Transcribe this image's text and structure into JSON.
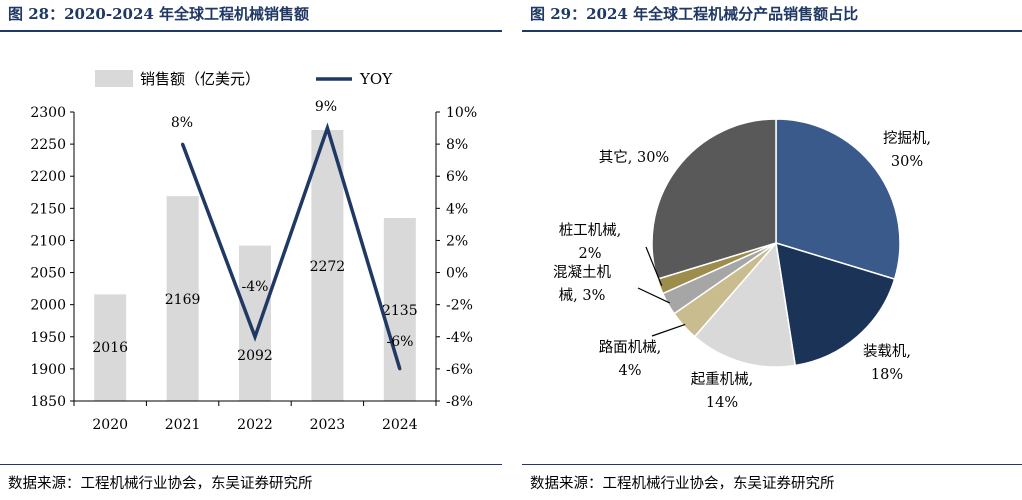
{
  "left": {
    "title": "图 28：2020-2024 年全球工程机械销售额",
    "source": "数据来源：工程机械行业协会，东吴证券研究所",
    "legend": {
      "bar_label": "销售额（亿美元）",
      "line_label": "YOY"
    }
  },
  "right": {
    "title": "图 29：2024 年全球工程机械分产品销售额占比",
    "source": "数据来源：工程机械行业协会，东吴证券研究所"
  },
  "colors": {
    "bar": "#d9d9d9",
    "line": "#1f3864",
    "title": "#1f3864",
    "pie": [
      "#3a5a8c",
      "#1c3358",
      "#d9d9d9",
      "#c9bd8f",
      "#a6a6a6",
      "#9c8d4c",
      "#595959"
    ]
  },
  "chart_data": [
    {
      "type": "bar",
      "title": "2020-2024 年全球工程机械销售额",
      "categories": [
        "2020",
        "2021",
        "2022",
        "2023",
        "2024"
      ],
      "series": [
        {
          "name": "销售额（亿美元）",
          "axis": "left",
          "values": [
            2016,
            2169,
            2092,
            2272,
            2135
          ],
          "labels": [
            "2016",
            "2169",
            "2092",
            "2272",
            "2135"
          ]
        },
        {
          "name": "YOY",
          "type": "line",
          "axis": "right",
          "values": [
            null,
            8,
            -4,
            9,
            -6
          ],
          "labels": [
            "",
            "8%",
            "-4%",
            "9%",
            "-6%"
          ]
        }
      ],
      "ylim": [
        1850,
        2300
      ],
      "yticks": [
        "1850",
        "1900",
        "1950",
        "2000",
        "2050",
        "2100",
        "2150",
        "2200",
        "2250",
        "2300"
      ],
      "y2lim": [
        -8,
        10
      ],
      "y2ticks": [
        "-8%",
        "-6%",
        "-4%",
        "-2%",
        "0%",
        "2%",
        "4%",
        "6%",
        "8%",
        "10%"
      ],
      "legend": "top"
    },
    {
      "type": "pie",
      "title": "2024 年全球工程机械分产品销售额占比",
      "slices": [
        {
          "name": "挖掘机",
          "value": 30,
          "label_lines": [
            "挖掘机,",
            "30%"
          ]
        },
        {
          "name": "装载机",
          "value": 18,
          "label_lines": [
            "装载机,",
            "18%"
          ]
        },
        {
          "name": "起重机械",
          "value": 14,
          "label_lines": [
            "起重机械,",
            "14%"
          ]
        },
        {
          "name": "路面机械",
          "value": 4,
          "label_lines": [
            "路面机械,",
            "4%"
          ]
        },
        {
          "name": "混凝土机械",
          "value": 3,
          "label_lines": [
            "混凝土机",
            "械, 3%"
          ]
        },
        {
          "name": "桩工机械",
          "value": 2,
          "label_lines": [
            "桩工机械,",
            "2%"
          ]
        },
        {
          "name": "其它",
          "value": 30,
          "label_lines": [
            "其它, 30%"
          ]
        }
      ]
    }
  ]
}
